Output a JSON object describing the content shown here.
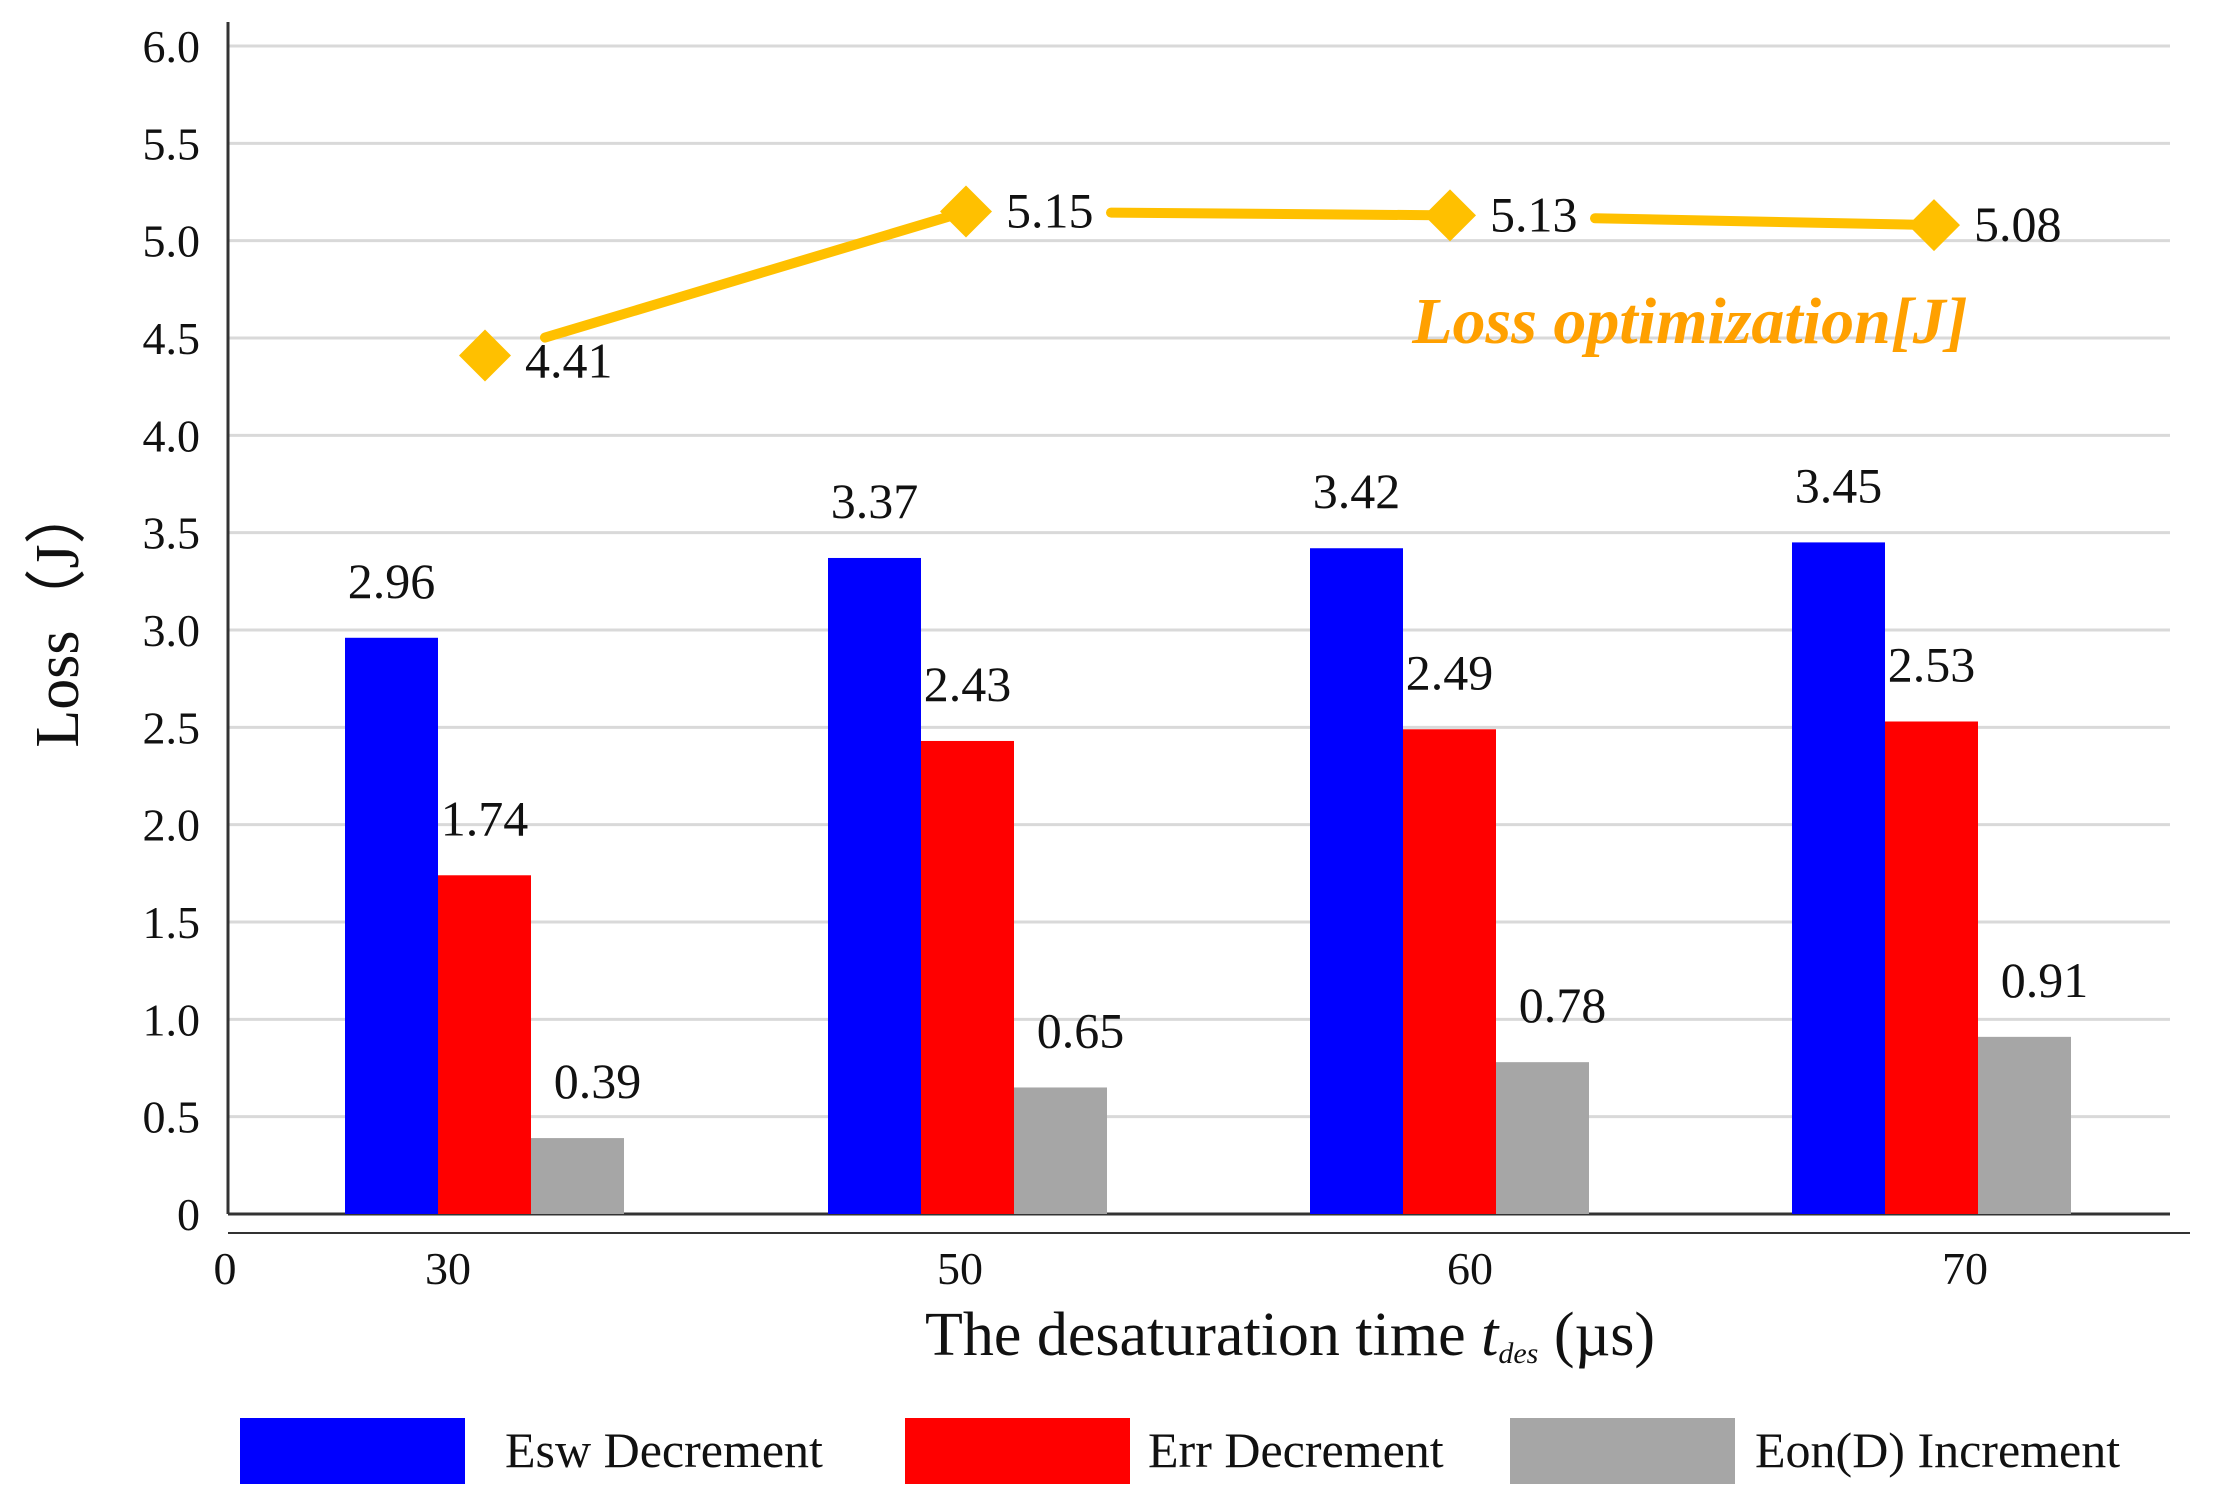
{
  "chart_data": {
    "type": "bar",
    "categories": [
      "30",
      "50",
      "60",
      "70"
    ],
    "x_origin_label": "0",
    "series": [
      {
        "name": "Esw Decrement",
        "color": "#0000ff",
        "values": [
          2.96,
          3.37,
          3.42,
          3.45
        ],
        "labels": [
          "2.96",
          "3.37",
          "3.42",
          "3.45"
        ]
      },
      {
        "name": "Err Decrement",
        "color": "#ff0000",
        "values": [
          1.74,
          2.43,
          2.49,
          2.53
        ],
        "labels": [
          "1.74",
          "2.43",
          "2.49",
          "2.53"
        ]
      },
      {
        "name": "Eon(D) Increment",
        "color": "#a6a6a6",
        "values": [
          0.39,
          0.65,
          0.78,
          0.91
        ],
        "labels": [
          "0.39",
          "0.65",
          "0.78",
          "0.91"
        ]
      }
    ],
    "line_series": {
      "name": "Loss optimization[J]",
      "color": "#ffc000",
      "title_color": "#ffa000",
      "values": [
        4.41,
        5.15,
        5.13,
        5.08
      ],
      "labels": [
        "4.41",
        "5.15",
        "5.13",
        "5.08"
      ]
    },
    "ylabel": "Loss（J）",
    "xlabel": {
      "prefix": "The desaturation time ",
      "symbol": "t",
      "subscript": "des",
      "suffix": " (µs)"
    },
    "ylim": [
      0,
      6.0
    ],
    "yticks": [
      "0",
      "0.5",
      "1.0",
      "1.5",
      "2.0",
      "2.5",
      "3.0",
      "3.5",
      "4.0",
      "4.5",
      "5.0",
      "5.5",
      "6.0"
    ],
    "grid": true,
    "legend_position": "bottom"
  }
}
